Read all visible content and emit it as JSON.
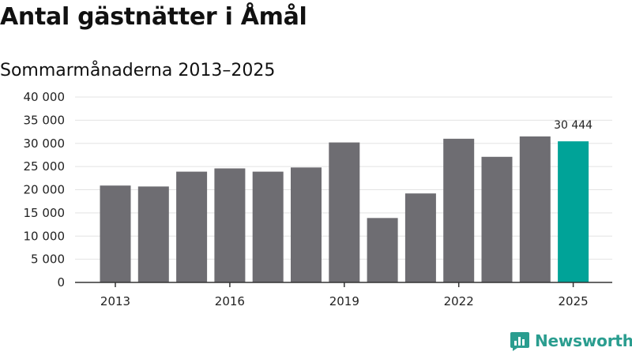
{
  "title": "Antal gästnätter i Åmål",
  "subtitle": "Sommarmånaderna 2013–2025",
  "brand": {
    "name": "Newsworthy",
    "icon": "newsworthy-logo-icon",
    "color": "#2a9d8f"
  },
  "chart_data": {
    "type": "bar",
    "categories": [
      "2013",
      "2014",
      "2015",
      "2016",
      "2017",
      "2018",
      "2019",
      "2020",
      "2021",
      "2022",
      "2023",
      "2024",
      "2025"
    ],
    "values": [
      20900,
      20700,
      23900,
      24600,
      23900,
      24800,
      30200,
      13900,
      19200,
      31000,
      27100,
      31500,
      30444
    ],
    "x_tick_labels": [
      "2013",
      "2016",
      "2019",
      "2022",
      "2025"
    ],
    "y_tick_labels": [
      "0",
      "5 000",
      "10 000",
      "15 000",
      "20 000",
      "25 000",
      "30 000",
      "35 000",
      "40 000"
    ],
    "ylim": [
      0,
      40000
    ],
    "y_tick_step": 5000,
    "annotations": [
      {
        "category": "2025",
        "text": "30 444"
      }
    ],
    "highlight": "2025",
    "colors": {
      "bar": "#6e6d72",
      "highlight": "#00a398",
      "grid": "#e3e3e3",
      "axis": "#333333"
    },
    "grid": true,
    "legend": "none",
    "xlabel": "",
    "ylabel": ""
  }
}
